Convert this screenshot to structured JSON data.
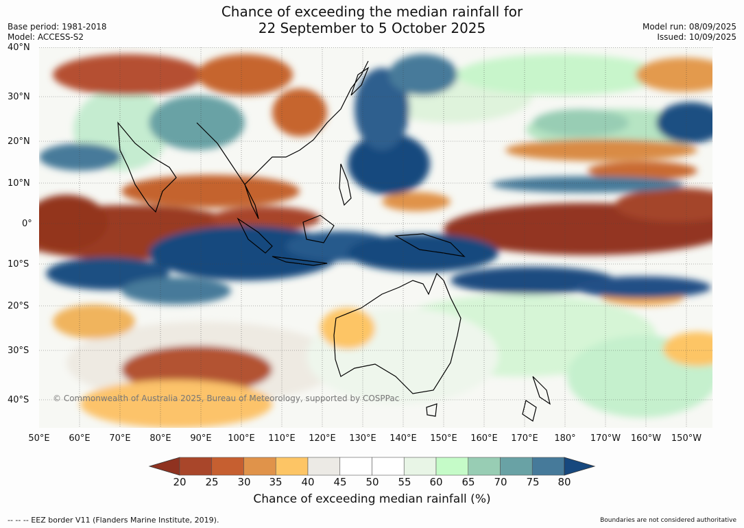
{
  "header": {
    "title_line1": "Chance of exceeding the median rainfall for",
    "title_line2": "22 September to 5 October 2025",
    "base_period": "Base period: 1981-2018",
    "model": "Model: ACCESS-S2",
    "model_run": "Model run: 08/09/2025",
    "issued": "Issued: 10/09/2025"
  },
  "map": {
    "lat_labels": [
      "40°N",
      "30°N",
      "20°N",
      "10°N",
      "0°",
      "10°S",
      "20°S",
      "30°S",
      "40°S"
    ],
    "lon_labels": [
      "50°E",
      "60°E",
      "70°E",
      "80°E",
      "90°E",
      "100°E",
      "110°E",
      "120°E",
      "130°E",
      "140°E",
      "150°E",
      "160°E",
      "170°E",
      "180°",
      "170°W",
      "160°W",
      "150°W"
    ],
    "copyright": "© Commonwealth of Australia 2025, Bureau of Meteorology, supported by COSPPac"
  },
  "colorbar": {
    "ticks": [
      "20",
      "25",
      "30",
      "35",
      "40",
      "45",
      "50",
      "55",
      "60",
      "65",
      "70",
      "75",
      "80"
    ],
    "colors": [
      "#8f3220",
      "#a9462a",
      "#c65f30",
      "#e0934a",
      "#fdc565",
      "#eceae5",
      "#ffffff",
      "#ffffff",
      "#e8f5e6",
      "#c5fbc8",
      "#98cdb4",
      "#69a2a5",
      "#467a9a",
      "#17487e"
    ],
    "title": "Chance of exceeding median rainfall (%)"
  },
  "footer": {
    "eez_note": "--  --  -- EEZ border V11 (Flanders Marine Institute, 2019).",
    "boundaries_note": "Boundaries are not considered authoritative"
  }
}
